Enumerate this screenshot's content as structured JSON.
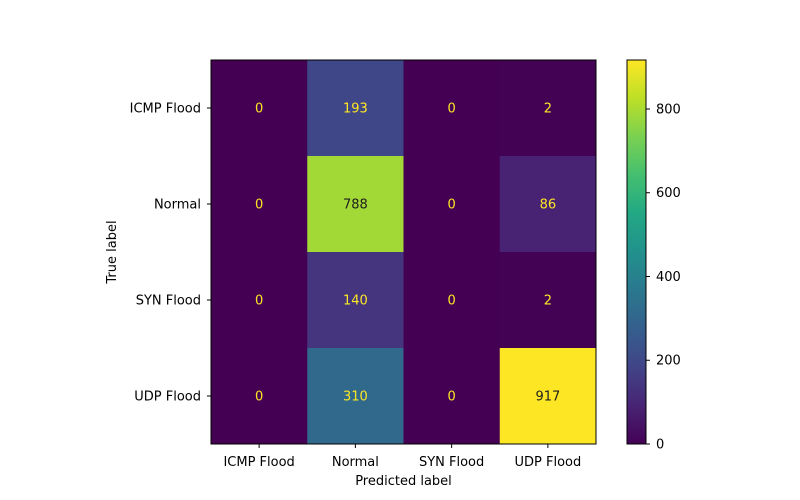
{
  "chart_data": {
    "type": "heatmap",
    "title": "",
    "xlabel": "Predicted label",
    "ylabel": "True label",
    "x_categories": [
      "ICMP Flood",
      "Normal",
      "SYN Flood",
      "UDP Flood"
    ],
    "y_categories": [
      "ICMP Flood",
      "Normal",
      "SYN Flood",
      "UDP Flood"
    ],
    "values": [
      [
        0,
        193,
        0,
        2
      ],
      [
        0,
        788,
        0,
        86
      ],
      [
        0,
        140,
        0,
        2
      ],
      [
        0,
        310,
        0,
        917
      ]
    ],
    "colormap": "viridis",
    "color_range": [
      0,
      917
    ],
    "colorbar": {
      "ticks": [
        0,
        200,
        400,
        600,
        800
      ],
      "tick_labels": [
        "0",
        "200",
        "400",
        "600",
        "800"
      ]
    },
    "text_colors": {
      "on_dark": "#fde725",
      "on_light": "#1f1f1f"
    },
    "grid": false
  }
}
